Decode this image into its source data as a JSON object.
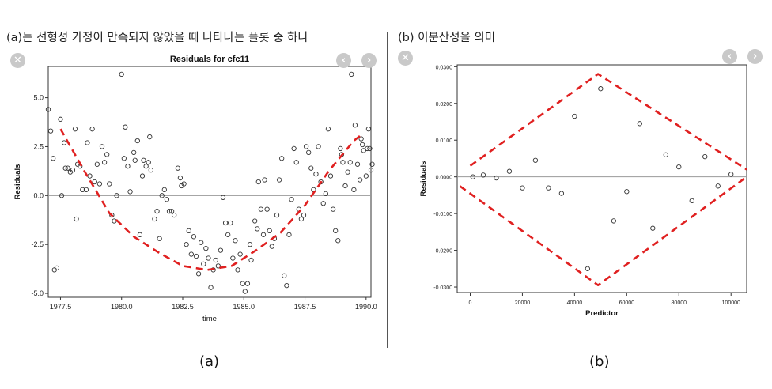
{
  "captions": {
    "a": "(a)는 선형성 가정이 만족되지 않았을 때 나타나는 플롯 중 하나",
    "b": "(b)  이분산성을 의미"
  },
  "panel_labels": {
    "a": "(a)",
    "b": "(b)"
  },
  "icons": {
    "close": "✕",
    "prev": "‹",
    "next": "›"
  },
  "colors": {
    "fit": "#e02020",
    "points": "#333333",
    "refline": "#999999",
    "button": "#c9c9c9"
  },
  "chart_data": [
    {
      "type": "scatter",
      "title": "Residuals for cfc11",
      "xlabel": "time",
      "ylabel": "Residuals",
      "xlim": [
        1977.0,
        1990.2
      ],
      "ylim": [
        -5.2,
        6.6
      ],
      "xticks": [
        1977.5,
        1980.0,
        1982.5,
        1985.0,
        1987.5,
        1990.0
      ],
      "xtick_labels": [
        "1977.5",
        "1980.0",
        "1982.5",
        "1985.0",
        "1987.5",
        "1990.0"
      ],
      "yticks": [
        -5.0,
        -2.5,
        0.0,
        2.5,
        5.0
      ],
      "ytick_labels": [
        "-5.0",
        "-2.5",
        "0.0",
        "2.5",
        "5.0"
      ],
      "reference_line": 0.0,
      "points": [
        [
          1977.0,
          4.4
        ],
        [
          1977.1,
          3.3
        ],
        [
          1977.2,
          1.9
        ],
        [
          1977.25,
          -3.8
        ],
        [
          1977.35,
          -3.7
        ],
        [
          1977.5,
          3.9
        ],
        [
          1977.55,
          0.0
        ],
        [
          1977.65,
          2.7
        ],
        [
          1977.7,
          1.4
        ],
        [
          1977.8,
          1.4
        ],
        [
          1977.9,
          1.2
        ],
        [
          1978.0,
          1.3
        ],
        [
          1978.1,
          3.4
        ],
        [
          1978.15,
          -1.2
        ],
        [
          1978.2,
          1.6
        ],
        [
          1978.3,
          1.5
        ],
        [
          1978.4,
          0.3
        ],
        [
          1978.55,
          0.3
        ],
        [
          1978.6,
          2.7
        ],
        [
          1978.7,
          1.0
        ],
        [
          1978.8,
          3.4
        ],
        [
          1978.9,
          0.7
        ],
        [
          1979.0,
          1.6
        ],
        [
          1979.1,
          0.6
        ],
        [
          1979.2,
          2.5
        ],
        [
          1979.3,
          1.7
        ],
        [
          1979.4,
          2.1
        ],
        [
          1979.5,
          0.6
        ],
        [
          1979.6,
          -1.0
        ],
        [
          1979.7,
          -1.3
        ],
        [
          1979.8,
          0.0
        ],
        [
          1980.0,
          6.2
        ],
        [
          1980.1,
          1.9
        ],
        [
          1980.15,
          3.5
        ],
        [
          1980.25,
          1.5
        ],
        [
          1980.35,
          0.2
        ],
        [
          1980.5,
          2.2
        ],
        [
          1980.55,
          1.8
        ],
        [
          1980.65,
          2.8
        ],
        [
          1980.75,
          -2.0
        ],
        [
          1980.85,
          1.0
        ],
        [
          1980.9,
          1.8
        ],
        [
          1981.0,
          1.5
        ],
        [
          1981.1,
          1.7
        ],
        [
          1981.15,
          3.0
        ],
        [
          1981.2,
          1.3
        ],
        [
          1981.35,
          -1.2
        ],
        [
          1981.45,
          -0.8
        ],
        [
          1981.55,
          -2.2
        ],
        [
          1981.65,
          0.0
        ],
        [
          1981.75,
          0.3
        ],
        [
          1981.85,
          -0.2
        ],
        [
          1981.95,
          -0.8
        ],
        [
          1982.05,
          -0.8
        ],
        [
          1982.15,
          -1.0
        ],
        [
          1982.3,
          1.4
        ],
        [
          1982.4,
          0.9
        ],
        [
          1982.45,
          0.5
        ],
        [
          1982.55,
          0.6
        ],
        [
          1982.65,
          -2.5
        ],
        [
          1982.75,
          -1.8
        ],
        [
          1982.85,
          -3.0
        ],
        [
          1982.95,
          -2.1
        ],
        [
          1983.05,
          -3.1
        ],
        [
          1983.15,
          -4.0
        ],
        [
          1983.25,
          -2.4
        ],
        [
          1983.35,
          -3.5
        ],
        [
          1983.45,
          -2.7
        ],
        [
          1983.55,
          -3.2
        ],
        [
          1983.65,
          -4.7
        ],
        [
          1983.75,
          -3.8
        ],
        [
          1983.85,
          -3.3
        ],
        [
          1983.95,
          -3.6
        ],
        [
          1984.05,
          -2.8
        ],
        [
          1984.15,
          -0.1
        ],
        [
          1984.25,
          -1.4
        ],
        [
          1984.35,
          -2.0
        ],
        [
          1984.45,
          -1.4
        ],
        [
          1984.55,
          -3.2
        ],
        [
          1984.65,
          -2.3
        ],
        [
          1984.75,
          -3.8
        ],
        [
          1984.85,
          -3.0
        ],
        [
          1984.95,
          -4.5
        ],
        [
          1985.05,
          -4.9
        ],
        [
          1985.15,
          -4.5
        ],
        [
          1985.25,
          -2.5
        ],
        [
          1985.3,
          -3.3
        ],
        [
          1985.45,
          -1.3
        ],
        [
          1985.55,
          -1.7
        ],
        [
          1985.6,
          0.7
        ],
        [
          1985.7,
          -0.7
        ],
        [
          1985.8,
          -2.0
        ],
        [
          1985.85,
          0.8
        ],
        [
          1985.95,
          -0.7
        ],
        [
          1986.05,
          -1.8
        ],
        [
          1986.15,
          -2.6
        ],
        [
          1986.25,
          -2.2
        ],
        [
          1986.35,
          -1.0
        ],
        [
          1986.45,
          0.8
        ],
        [
          1986.55,
          1.9
        ],
        [
          1986.65,
          -4.1
        ],
        [
          1986.75,
          -4.6
        ],
        [
          1986.85,
          -2.0
        ],
        [
          1986.95,
          -0.2
        ],
        [
          1987.05,
          2.4
        ],
        [
          1987.15,
          1.7
        ],
        [
          1987.25,
          -0.7
        ],
        [
          1987.35,
          -1.2
        ],
        [
          1987.45,
          -1.0
        ],
        [
          1987.55,
          2.5
        ],
        [
          1987.65,
          2.2
        ],
        [
          1987.75,
          1.4
        ],
        [
          1987.85,
          0.3
        ],
        [
          1987.95,
          1.1
        ],
        [
          1988.05,
          2.5
        ],
        [
          1988.15,
          0.7
        ],
        [
          1988.25,
          -0.4
        ],
        [
          1988.35,
          0.1
        ],
        [
          1988.45,
          3.4
        ],
        [
          1988.55,
          1.0
        ],
        [
          1988.65,
          -0.7
        ],
        [
          1988.75,
          -1.8
        ],
        [
          1988.85,
          -2.3
        ],
        [
          1988.95,
          2.4
        ],
        [
          1989.0,
          2.1
        ],
        [
          1989.05,
          1.7
        ],
        [
          1989.15,
          0.5
        ],
        [
          1989.25,
          1.2
        ],
        [
          1989.35,
          1.7
        ],
        [
          1989.4,
          6.2
        ],
        [
          1989.5,
          0.3
        ],
        [
          1989.55,
          3.6
        ],
        [
          1989.65,
          1.6
        ],
        [
          1989.75,
          0.8
        ],
        [
          1989.8,
          2.9
        ],
        [
          1989.85,
          2.6
        ],
        [
          1989.9,
          2.3
        ],
        [
          1990.0,
          1.0
        ],
        [
          1990.05,
          2.4
        ],
        [
          1990.1,
          3.4
        ],
        [
          1990.15,
          2.4
        ],
        [
          1990.2,
          1.3
        ],
        [
          1990.25,
          1.6
        ]
      ],
      "fit_curve": [
        [
          1977.5,
          3.4
        ],
        [
          1978.5,
          1.2
        ],
        [
          1979.5,
          -0.9
        ],
        [
          1980.5,
          -2.1
        ],
        [
          1981.5,
          -2.9
        ],
        [
          1982.5,
          -3.6
        ],
        [
          1983.5,
          -3.8
        ],
        [
          1984.5,
          -3.6
        ],
        [
          1985.5,
          -2.8
        ],
        [
          1986.5,
          -1.9
        ],
        [
          1987.5,
          -0.5
        ],
        [
          1988.5,
          1.3
        ],
        [
          1989.5,
          2.8
        ],
        [
          1989.8,
          3.1
        ]
      ]
    },
    {
      "type": "scatter",
      "title": "",
      "xlabel": "Predictor",
      "ylabel": "Residuals",
      "xlim": [
        -5000,
        106000
      ],
      "ylim": [
        -0.0315,
        0.0305
      ],
      "xticks": [
        0,
        20000,
        40000,
        60000,
        80000,
        100000
      ],
      "xtick_labels": [
        "0",
        "20000",
        "40000",
        "60000",
        "80000",
        "100000"
      ],
      "yticks": [
        0.03,
        0.02,
        0.01,
        0.0,
        -0.01,
        -0.02,
        -0.03
      ],
      "ytick_labels": [
        "0.0300",
        "0.0200",
        "0.0100",
        "0.0000",
        "-0.0100",
        "-0.0200",
        "-0.0300"
      ],
      "reference_line": 0.0,
      "points": [
        [
          1000,
          0.0
        ],
        [
          5000,
          0.0005
        ],
        [
          10000,
          -0.0003
        ],
        [
          15000,
          0.0015
        ],
        [
          20000,
          -0.003
        ],
        [
          25000,
          0.0045
        ],
        [
          30000,
          -0.003
        ],
        [
          35000,
          -0.0045
        ],
        [
          40000,
          0.0165
        ],
        [
          45000,
          -0.025
        ],
        [
          50000,
          0.024
        ],
        [
          55000,
          -0.012
        ],
        [
          60000,
          -0.004
        ],
        [
          65000,
          0.0145
        ],
        [
          70000,
          -0.014
        ],
        [
          75000,
          0.006
        ],
        [
          80000,
          0.0027
        ],
        [
          85000,
          -0.0065
        ],
        [
          90000,
          0.0055
        ],
        [
          95000,
          -0.0025
        ],
        [
          100000,
          0.0007
        ]
      ],
      "envelope_upper": [
        [
          0,
          0.003
        ],
        [
          49000,
          0.028
        ],
        [
          106000,
          0.002
        ]
      ],
      "envelope_lower": [
        [
          -4000,
          -0.0025
        ],
        [
          49000,
          -0.0295
        ],
        [
          106000,
          0.0
        ]
      ]
    }
  ]
}
